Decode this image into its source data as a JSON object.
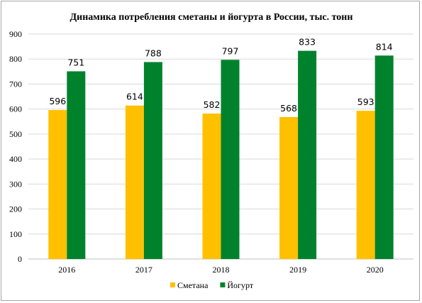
{
  "chart_data": {
    "type": "bar",
    "title": "Динамика потребления сметаны и йогурта в России,  тыс. тонн",
    "categories": [
      "2016",
      "2017",
      "2018",
      "2019",
      "2020"
    ],
    "series": [
      {
        "name": "Сметана",
        "color": "#ffc000",
        "values": [
          596,
          614,
          582,
          568,
          593
        ]
      },
      {
        "name": "Йогурт",
        "color": "#00822d",
        "values": [
          751,
          788,
          797,
          833,
          814
        ]
      }
    ],
    "ylim": [
      0,
      900
    ],
    "yticks": [
      0,
      100,
      200,
      300,
      400,
      500,
      600,
      700,
      800,
      900
    ],
    "grid": true,
    "legend_position": "bottom",
    "data_labels": true
  }
}
